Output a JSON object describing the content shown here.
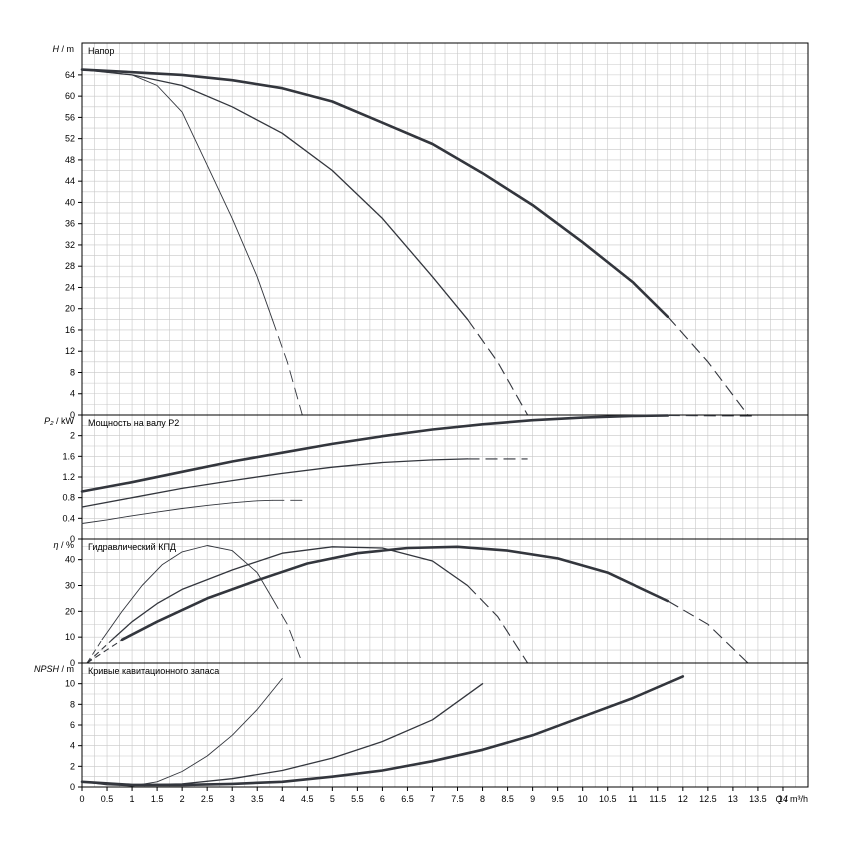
{
  "chart_data": [
    {
      "type": "line",
      "id": "head",
      "title": "Напор",
      "ylabel_symbol": "H",
      "ylabel_unit": "/ m",
      "ylim": [
        0,
        70
      ],
      "yticks": [
        0,
        4,
        8,
        12,
        16,
        20,
        24,
        28,
        32,
        36,
        40,
        44,
        48,
        52,
        56,
        60,
        64
      ],
      "series": [
        {
          "weight": "thin",
          "solid": [
            [
              0,
              65
            ],
            [
              0.5,
              64.5
            ],
            [
              1,
              64
            ],
            [
              1.5,
              62
            ],
            [
              2,
              57
            ],
            [
              2.5,
              47
            ],
            [
              3,
              37
            ],
            [
              3.5,
              26
            ],
            [
              3.8,
              18
            ]
          ],
          "dashed": [
            [
              3.8,
              18
            ],
            [
              4.1,
              10
            ],
            [
              4.4,
              0
            ]
          ]
        },
        {
          "weight": "medium",
          "solid": [
            [
              0,
              65
            ],
            [
              1,
              64
            ],
            [
              2,
              62
            ],
            [
              3,
              58
            ],
            [
              4,
              53
            ],
            [
              5,
              46
            ],
            [
              6,
              37
            ],
            [
              7,
              26
            ],
            [
              7.7,
              18
            ]
          ],
          "dashed": [
            [
              7.7,
              18
            ],
            [
              8.3,
              10
            ],
            [
              8.9,
              0
            ]
          ]
        },
        {
          "weight": "thick",
          "solid": [
            [
              0,
              65
            ],
            [
              1,
              64.5
            ],
            [
              2,
              64
            ],
            [
              3,
              63
            ],
            [
              4,
              61.5
            ],
            [
              5,
              59
            ],
            [
              6,
              55
            ],
            [
              7,
              51
            ],
            [
              8,
              45.5
            ],
            [
              9,
              39.5
            ],
            [
              10,
              32.5
            ],
            [
              11,
              25
            ],
            [
              11.7,
              18.5
            ]
          ],
          "dashed": [
            [
              11.7,
              18.5
            ],
            [
              12.5,
              10
            ],
            [
              13.3,
              0
            ]
          ]
        }
      ]
    },
    {
      "type": "line",
      "id": "power",
      "title": "Мощность на валу P2",
      "ylabel_symbol": "P₂",
      "ylabel_unit": "/ kW",
      "ylim": [
        0,
        2.4
      ],
      "yticks": [
        0,
        0.4,
        0.8,
        1.2,
        1.6,
        2
      ],
      "ytick_labels": [
        "0",
        "0.4",
        "0.8",
        "1.2",
        "1.6",
        "2"
      ],
      "series": [
        {
          "weight": "thin",
          "solid": [
            [
              0,
              0.3
            ],
            [
              0.5,
              0.37
            ],
            [
              1,
              0.45
            ],
            [
              1.5,
              0.52
            ],
            [
              2,
              0.59
            ],
            [
              2.5,
              0.65
            ],
            [
              3,
              0.7
            ],
            [
              3.5,
              0.74
            ],
            [
              3.8,
              0.75
            ]
          ],
          "dashed": [
            [
              3.8,
              0.75
            ],
            [
              4.4,
              0.75
            ]
          ]
        },
        {
          "weight": "medium",
          "solid": [
            [
              0,
              0.62
            ],
            [
              1,
              0.8
            ],
            [
              2,
              0.98
            ],
            [
              3,
              1.13
            ],
            [
              4,
              1.27
            ],
            [
              5,
              1.39
            ],
            [
              6,
              1.48
            ],
            [
              7,
              1.53
            ],
            [
              7.7,
              1.55
            ]
          ],
          "dashed": [
            [
              7.7,
              1.55
            ],
            [
              8.9,
              1.55
            ]
          ]
        },
        {
          "weight": "thick",
          "solid": [
            [
              0,
              0.92
            ],
            [
              1,
              1.1
            ],
            [
              2,
              1.3
            ],
            [
              3,
              1.5
            ],
            [
              4,
              1.67
            ],
            [
              5,
              1.84
            ],
            [
              6,
              1.99
            ],
            [
              7,
              2.12
            ],
            [
              8,
              2.22
            ],
            [
              9,
              2.3
            ],
            [
              10,
              2.35
            ],
            [
              11,
              2.38
            ],
            [
              11.7,
              2.39
            ]
          ],
          "dashed": [
            [
              11.7,
              2.39
            ],
            [
              13.5,
              2.38
            ]
          ]
        }
      ]
    },
    {
      "type": "line",
      "id": "efficiency",
      "title": "Гидравлический КПД",
      "ylabel_symbol": "η",
      "ylabel_unit": "/ %",
      "ylim": [
        0,
        48
      ],
      "yticks": [
        0,
        10,
        20,
        30,
        40
      ],
      "series": [
        {
          "weight": "thin",
          "dashed_start": [
            [
              0.1,
              0
            ],
            [
              0.4,
              9
            ]
          ],
          "solid": [
            [
              0.4,
              9
            ],
            [
              0.8,
              20
            ],
            [
              1.2,
              30
            ],
            [
              1.6,
              38
            ],
            [
              2,
              43
            ],
            [
              2.5,
              45.5
            ],
            [
              3,
              43.5
            ],
            [
              3.5,
              35
            ],
            [
              3.8,
              25
            ]
          ],
          "dashed": [
            [
              3.8,
              25
            ],
            [
              4.1,
              15
            ],
            [
              4.4,
              0
            ]
          ]
        },
        {
          "weight": "medium",
          "dashed_start": [
            [
              0.1,
              0
            ],
            [
              0.6,
              9
            ]
          ],
          "solid": [
            [
              0.6,
              9
            ],
            [
              1,
              16
            ],
            [
              1.5,
              23
            ],
            [
              2,
              28.5
            ],
            [
              3,
              36
            ],
            [
              4,
              42.5
            ],
            [
              5,
              45
            ],
            [
              6,
              44.5
            ],
            [
              7,
              39.5
            ],
            [
              7.7,
              30
            ]
          ],
          "dashed": [
            [
              7.7,
              30
            ],
            [
              8.3,
              18
            ],
            [
              8.9,
              0
            ]
          ]
        },
        {
          "weight": "thick",
          "dashed_start": [
            [
              0.1,
              0
            ],
            [
              0.8,
              9
            ]
          ],
          "solid": [
            [
              0.8,
              9
            ],
            [
              1.5,
              16
            ],
            [
              2.5,
              25
            ],
            [
              3.5,
              32
            ],
            [
              4.5,
              38.5
            ],
            [
              5.5,
              42.5
            ],
            [
              6.5,
              44.5
            ],
            [
              7.5,
              45
            ],
            [
              8.5,
              43.5
            ],
            [
              9.5,
              40.5
            ],
            [
              10.5,
              35
            ],
            [
              11.7,
              24
            ]
          ],
          "dashed": [
            [
              11.7,
              24
            ],
            [
              12.5,
              15
            ],
            [
              13.3,
              0
            ]
          ]
        }
      ]
    },
    {
      "type": "line",
      "id": "npsh",
      "title": "Кривые кавитационного запаса",
      "ylabel_symbol": "NPSH",
      "ylabel_unit": "/ m",
      "ylim": [
        0,
        12
      ],
      "yticks": [
        0,
        2,
        4,
        6,
        8,
        10
      ],
      "series": [
        {
          "weight": "thin",
          "solid": [
            [
              0,
              0.5
            ],
            [
              0.5,
              0.2
            ],
            [
              1,
              0.1
            ],
            [
              1.5,
              0.5
            ],
            [
              2,
              1.5
            ],
            [
              2.5,
              3
            ],
            [
              3,
              5
            ],
            [
              3.5,
              7.5
            ],
            [
              4,
              10.5
            ]
          ]
        },
        {
          "weight": "medium",
          "solid": [
            [
              0,
              0.5
            ],
            [
              0.5,
              0.3
            ],
            [
              1,
              0.2
            ],
            [
              2,
              0.3
            ],
            [
              3,
              0.8
            ],
            [
              4,
              1.6
            ],
            [
              5,
              2.8
            ],
            [
              6,
              4.4
            ],
            [
              7,
              6.5
            ],
            [
              8,
              10
            ]
          ]
        },
        {
          "weight": "thick",
          "solid": [
            [
              0,
              0.5
            ],
            [
              1,
              0.2
            ],
            [
              2,
              0.2
            ],
            [
              3,
              0.3
            ],
            [
              4,
              0.5
            ],
            [
              5,
              1
            ],
            [
              6,
              1.6
            ],
            [
              7,
              2.5
            ],
            [
              8,
              3.6
            ],
            [
              9,
              5
            ],
            [
              10,
              6.8
            ],
            [
              11,
              8.6
            ],
            [
              12,
              10.7
            ]
          ]
        }
      ]
    }
  ],
  "x_axis": {
    "label_symbol": "Q",
    "label_unit": "/ m³/h",
    "xlim": [
      0,
      14.5
    ],
    "ticks": [
      0,
      0.5,
      1,
      1.5,
      2,
      2.5,
      3,
      3.5,
      4,
      4.5,
      5,
      5.5,
      6,
      6.5,
      7,
      7.5,
      8,
      8.5,
      9,
      9.5,
      10,
      10.5,
      11,
      11.5,
      12,
      12.5,
      13,
      13.5,
      14
    ],
    "tick_labels": [
      "0",
      "0.5",
      "1",
      "1.5",
      "2",
      "2.5",
      "3",
      "3.5",
      "4",
      "4.5",
      "5",
      "5.5",
      "6",
      "6.5",
      "7",
      "7.5",
      "8",
      "8.5",
      "9",
      "9.5",
      "10",
      "10.5",
      "11",
      "11.5",
      "12",
      "12.5",
      "13",
      "13.5",
      "14"
    ]
  },
  "colors": {
    "curve": "#33363d",
    "grid": "#c8c8c8",
    "frame": "#000000"
  }
}
